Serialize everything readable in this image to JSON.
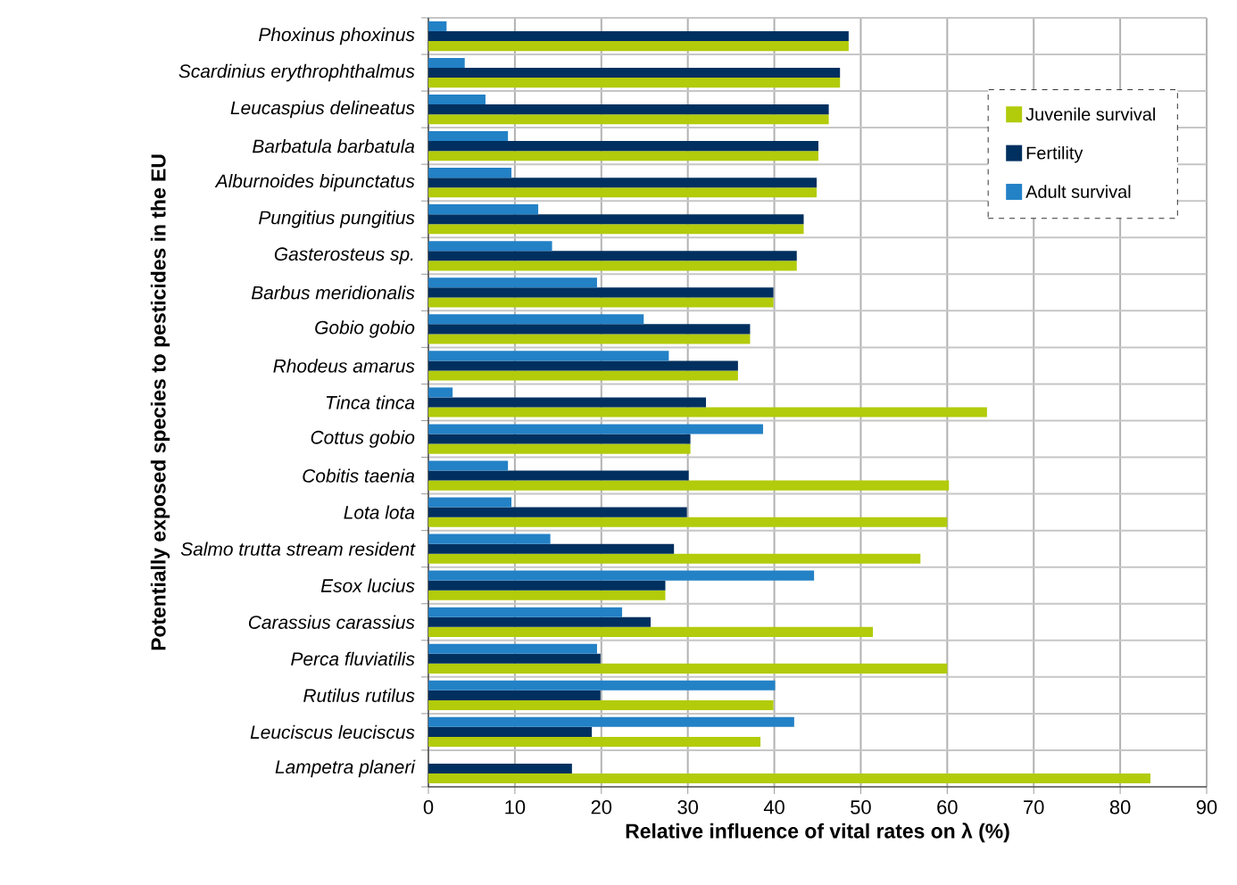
{
  "chart_data": {
    "type": "bar",
    "orientation": "horizontal",
    "xlabel": "Relative influence of vital rates on λ (%)",
    "ylabel": "Potentially exposed species to pesticides in the EU",
    "categories": [
      "Phoxinus phoxinus",
      "Scardinius erythrophthalmus",
      "Leucaspius delineatus",
      "Barbatula barbatula",
      "Alburnoides bipunctatus",
      "Pungitius pungitius",
      "Gasterosteus sp.",
      "Barbus meridionalis",
      "Gobio gobio",
      "Rhodeus amarus",
      "Tinca tinca",
      "Cottus gobio",
      "Cobitis taenia",
      "Lota lota",
      "Salmo trutta stream resident",
      "Esox lucius",
      "Carassius carassius",
      "Perca fluviatilis",
      "Rutilus rutilus",
      "Leuciscus leuciscus",
      "Lampetra planeri"
    ],
    "series": [
      {
        "name": "Juvenile survival",
        "color": "#b2cb0b",
        "values": [
          48.6,
          47.6,
          46.3,
          45.1,
          44.9,
          43.4,
          42.6,
          39.9,
          37.2,
          35.8,
          64.6,
          30.3,
          60.2,
          60.0,
          56.9,
          27.4,
          51.4,
          60.0,
          39.9,
          38.4,
          83.5
        ]
      },
      {
        "name": "Fertility",
        "color": "#00305f",
        "values": [
          48.6,
          47.6,
          46.3,
          45.1,
          44.9,
          43.4,
          42.6,
          39.9,
          37.2,
          35.8,
          32.1,
          30.3,
          30.1,
          29.9,
          28.4,
          27.4,
          25.7,
          19.9,
          19.9,
          18.9,
          16.6
        ]
      },
      {
        "name": "Adult survival",
        "color": "#2381c6",
        "values": [
          2.1,
          4.2,
          6.6,
          9.2,
          9.6,
          12.7,
          14.3,
          19.5,
          24.9,
          27.8,
          2.8,
          38.7,
          9.2,
          9.6,
          14.1,
          44.6,
          22.4,
          19.5,
          40.1,
          42.3,
          null
        ]
      }
    ],
    "xlim": [
      0,
      90
    ],
    "xticks": [
      0,
      10,
      20,
      30,
      40,
      50,
      60,
      70,
      80,
      90
    ],
    "grid": true,
    "legend": "top right"
  }
}
